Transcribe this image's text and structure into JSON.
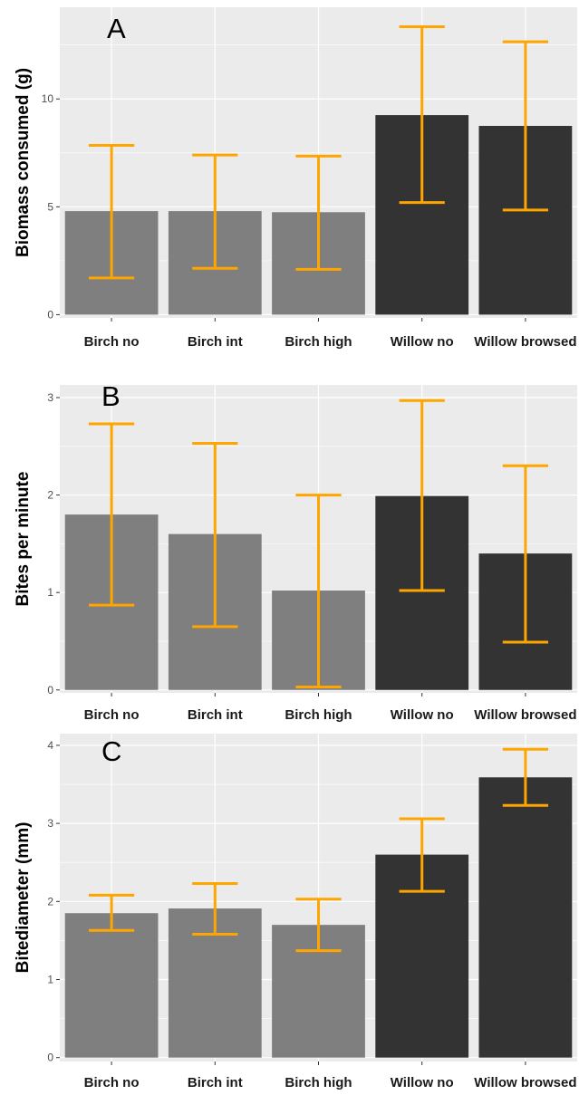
{
  "chart_data": [
    {
      "type": "bar",
      "panel_label": "A",
      "ylabel": "Biomass consumed (g)",
      "categories": [
        "Birch no",
        "Birch int",
        "Birch high",
        "Willow no",
        "Willow browsed"
      ],
      "values": [
        4.8,
        4.8,
        4.75,
        9.25,
        8.75
      ],
      "error_low": [
        1.7,
        2.15,
        2.1,
        5.2,
        4.85
      ],
      "error_high": [
        7.85,
        7.4,
        7.35,
        13.35,
        12.65
      ],
      "ylim": [
        -0.15,
        14.25
      ],
      "yticks": [
        0,
        5,
        10
      ],
      "ytick_labels": [
        "0",
        "5",
        "10"
      ],
      "grid": true
    },
    {
      "type": "bar",
      "panel_label": "B",
      "ylabel": "Bites per minute",
      "categories": [
        "Birch no",
        "Birch int",
        "Birch high",
        "Willow no",
        "Willow browsed"
      ],
      "values": [
        1.8,
        1.6,
        1.02,
        1.99,
        1.4
      ],
      "error_low": [
        0.87,
        0.65,
        0.03,
        1.02,
        0.49
      ],
      "error_high": [
        2.73,
        2.53,
        2.0,
        2.97,
        2.3
      ],
      "ylim": [
        -0.03,
        3.13
      ],
      "yticks": [
        0,
        1,
        2,
        3
      ],
      "ytick_labels": [
        "0",
        "1",
        "2",
        "3"
      ],
      "grid": true
    },
    {
      "type": "bar",
      "panel_label": "C",
      "ylabel": "Bitediameter (mm)",
      "categories": [
        "Birch no",
        "Birch int",
        "Birch high",
        "Willow no",
        "Willow browsed"
      ],
      "values": [
        1.85,
        1.91,
        1.7,
        2.6,
        3.59
      ],
      "error_low": [
        1.63,
        1.58,
        1.37,
        2.13,
        3.23
      ],
      "error_high": [
        2.08,
        2.23,
        2.03,
        3.06,
        3.95
      ],
      "ylim": [
        -0.05,
        4.15
      ],
      "yticks": [
        0,
        1,
        2,
        3,
        4
      ],
      "ytick_labels": [
        "0",
        "1",
        "2",
        "3",
        "4"
      ],
      "grid": true
    }
  ],
  "colors": {
    "panel_background": "#ebebeb",
    "gridline": "#ffffff",
    "birch_bar": "#7f7f7f",
    "willow_bar": "#333333",
    "errorbar": "#ffa500",
    "tick_text": "#4d4d4d",
    "axis_title": "#000000"
  },
  "bar_color_groups": [
    "birch",
    "birch",
    "birch",
    "willow",
    "willow"
  ]
}
